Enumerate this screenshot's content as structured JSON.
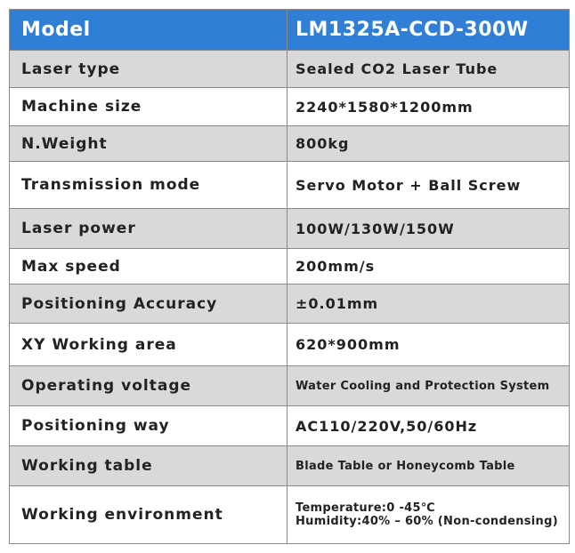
{
  "table": {
    "header": [
      "Model",
      "LM1325A-CCD-300W"
    ],
    "rows": [
      [
        "Laser type",
        "Sealed CO2 Laser Tube"
      ],
      [
        "Machine size",
        "2240*1580*1200mm"
      ],
      [
        "N.Weight",
        "800kg"
      ],
      [
        "Transmission mode",
        "Servo Motor + Ball Screw"
      ],
      [
        "Laser power",
        "100W/130W/150W"
      ],
      [
        "Max speed",
        "200mm/s"
      ],
      [
        "Positioning Accuracy",
        "±0.01mm"
      ],
      [
        "XY Working area",
        "620*900mm"
      ],
      [
        "Operating voltage",
        "Water Cooling and Protection System"
      ],
      [
        "Positioning way",
        "AC110/220V,50/60Hz"
      ],
      [
        "Working table",
        "Blade Table or Honeycomb Table"
      ],
      [
        "Working environment",
        [
          "Temperature:0 -45℃",
          "Humidity:40% – 60% (Non-condensing)"
        ]
      ]
    ]
  }
}
